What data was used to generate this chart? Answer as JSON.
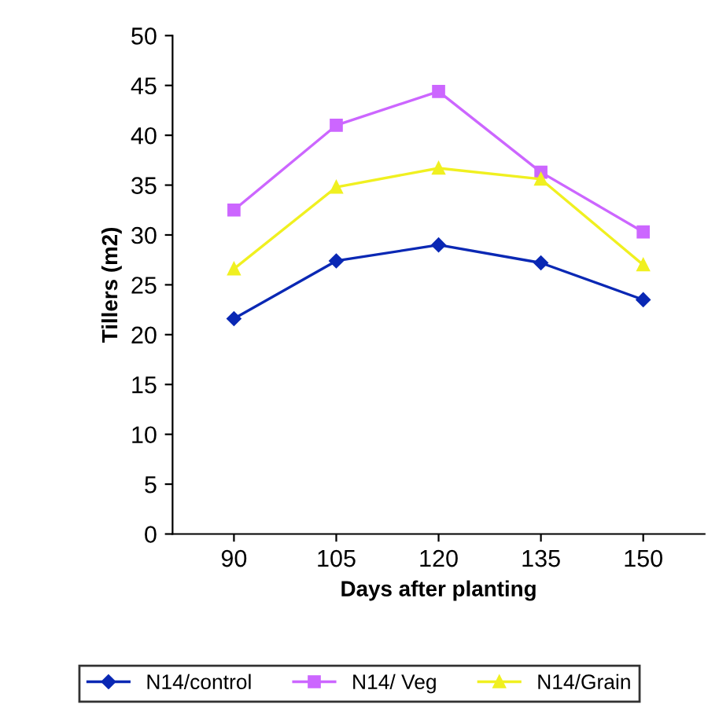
{
  "chart_data": {
    "type": "line",
    "xlabel": "Days after planting",
    "ylabel": "Tillers (m2)",
    "categories": [
      "90",
      "105",
      "120",
      "135",
      "150"
    ],
    "series": [
      {
        "name": "N14/control",
        "color": "#0a28b4",
        "marker": "diamond",
        "values": [
          21.6,
          27.4,
          29.0,
          27.2,
          23.5
        ]
      },
      {
        "name": "N14/ Veg",
        "color": "#cc66ff",
        "marker": "square",
        "values": [
          32.5,
          41.0,
          44.4,
          36.3,
          30.3
        ]
      },
      {
        "name": "N14/Grain",
        "color": "#f0f020",
        "marker": "triangle",
        "values": [
          26.6,
          34.8,
          36.7,
          35.6,
          27.0
        ]
      }
    ],
    "ylim": [
      0,
      50
    ],
    "yticks": [
      0,
      5,
      10,
      15,
      20,
      25,
      30,
      35,
      40,
      45,
      50
    ],
    "grid": false,
    "legend": "bottom",
    "line_style": "solid"
  }
}
